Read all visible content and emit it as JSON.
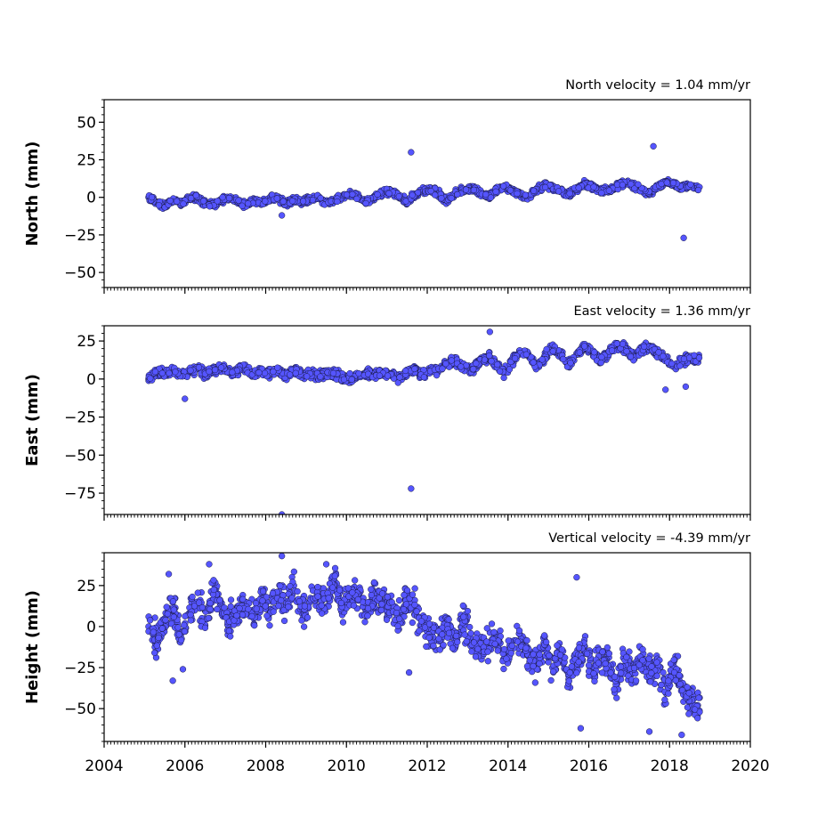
{
  "chart_data": [
    {
      "type": "scatter",
      "title": "North velocity = 1.04 mm/yr",
      "ylabel": "North (mm)",
      "ylim": [
        -60,
        65
      ],
      "yticks": [
        -50,
        -25,
        0,
        25,
        50
      ],
      "ytick_labels": [
        "−50",
        "−25",
        "0",
        "25",
        "50"
      ],
      "xlim": [
        2004,
        2020
      ],
      "xtick_labels_shown": false,
      "color": "#5555ff",
      "series": [
        {
          "x": [
            2005.1,
            2005.3,
            2005.5,
            2005.7,
            2005.9,
            2006.1,
            2006.3,
            2006.5,
            2006.7,
            2006.9,
            2007.1,
            2007.3,
            2007.5,
            2007.7,
            2007.9,
            2008.1,
            2008.3,
            2008.5,
            2008.7,
            2008.9,
            2009.1,
            2009.3,
            2009.5,
            2009.7,
            2009.9,
            2010.1,
            2010.3,
            2010.5,
            2010.7,
            2010.9,
            2011.1,
            2011.3,
            2011.5,
            2011.7,
            2011.9,
            2012.1,
            2012.3,
            2012.5,
            2012.7,
            2012.9,
            2013.1,
            2013.3,
            2013.5,
            2013.7,
            2013.9,
            2014.1,
            2014.3,
            2014.5,
            2014.7,
            2014.9,
            2015.1,
            2015.3,
            2015.5,
            2015.7,
            2015.9,
            2016.1,
            2016.3,
            2016.5,
            2016.7,
            2016.9,
            2017.1,
            2017.3,
            2017.5,
            2017.7,
            2017.9,
            2018.1,
            2018.3,
            2018.5,
            2018.7,
            2011.6,
            2017.6,
            2018.35,
            2008.4
          ],
          "y": [
            0,
            -3,
            -6,
            -2,
            -4,
            -1,
            0,
            -4,
            -5,
            -2,
            0,
            -3,
            -5,
            -2,
            -4,
            -1,
            0,
            -5,
            -2,
            -3,
            -1,
            0,
            -4,
            -2,
            0,
            2,
            0,
            -3,
            0,
            3,
            4,
            0,
            -3,
            2,
            4,
            5,
            2,
            -2,
            3,
            5,
            6,
            3,
            0,
            4,
            7,
            5,
            2,
            0,
            5,
            8,
            7,
            4,
            2,
            6,
            9,
            7,
            4,
            5,
            8,
            10,
            8,
            5,
            3,
            7,
            10,
            9,
            6,
            8,
            6,
            30,
            34,
            -27,
            -12
          ]
        }
      ]
    },
    {
      "type": "scatter",
      "title": "East velocity = 1.36 mm/yr",
      "ylabel": "East (mm)",
      "ylim": [
        -89,
        35
      ],
      "yticks": [
        -75,
        -50,
        -25,
        0,
        25
      ],
      "ytick_labels": [
        "−75",
        "−50",
        "−25",
        "0",
        "25"
      ],
      "xlim": [
        2004,
        2020
      ],
      "xtick_labels_shown": false,
      "color": "#5555ff",
      "series": [
        {
          "x": [
            2005.1,
            2005.3,
            2005.5,
            2005.7,
            2005.9,
            2006.1,
            2006.3,
            2006.5,
            2006.7,
            2006.9,
            2007.1,
            2007.3,
            2007.5,
            2007.7,
            2007.9,
            2008.1,
            2008.3,
            2008.5,
            2008.7,
            2008.9,
            2009.1,
            2009.3,
            2009.5,
            2009.7,
            2009.9,
            2010.1,
            2010.3,
            2010.5,
            2010.7,
            2010.9,
            2011.1,
            2011.3,
            2011.5,
            2011.7,
            2011.9,
            2012.1,
            2012.3,
            2012.5,
            2012.7,
            2012.9,
            2013.1,
            2013.3,
            2013.5,
            2013.7,
            2013.9,
            2014.1,
            2014.3,
            2014.5,
            2014.7,
            2014.9,
            2015.1,
            2015.3,
            2015.5,
            2015.7,
            2015.9,
            2016.1,
            2016.3,
            2016.5,
            2016.7,
            2016.9,
            2017.1,
            2017.3,
            2017.5,
            2017.7,
            2017.9,
            2018.1,
            2018.3,
            2018.5,
            2018.7,
            2011.6,
            2013.55,
            2008.4,
            2006.0,
            2017.9,
            2018.4
          ],
          "y": [
            0,
            5,
            3,
            6,
            2,
            4,
            7,
            3,
            6,
            8,
            4,
            5,
            7,
            3,
            5,
            4,
            6,
            2,
            5,
            3,
            4,
            2,
            4,
            3,
            1,
            0,
            3,
            4,
            2,
            5,
            3,
            1,
            4,
            6,
            2,
            5,
            7,
            10,
            12,
            8,
            6,
            11,
            15,
            10,
            4,
            12,
            18,
            16,
            8,
            14,
            20,
            17,
            10,
            16,
            22,
            18,
            12,
            18,
            22,
            20,
            15,
            19,
            21,
            17,
            14,
            8,
            11,
            14,
            13,
            -72,
            31,
            -89,
            -13,
            -7,
            -5
          ]
        }
      ]
    },
    {
      "type": "scatter",
      "title": "Vertical velocity = -4.39 mm/yr",
      "ylabel": "Height (mm)",
      "ylim": [
        -70,
        45
      ],
      "yticks": [
        -50,
        -25,
        0,
        25
      ],
      "ytick_labels": [
        "−50",
        "−25",
        "0",
        "25"
      ],
      "xlim": [
        2004,
        2020
      ],
      "xticks": [
        2004,
        2006,
        2008,
        2010,
        2012,
        2014,
        2016,
        2018,
        2020
      ],
      "xtick_labels": [
        "2004",
        "2006",
        "2008",
        "2010",
        "2012",
        "2014",
        "2016",
        "2018",
        "2020"
      ],
      "color": "#5555ff",
      "series": [
        {
          "x": [
            2005.1,
            2005.3,
            2005.5,
            2005.7,
            2005.9,
            2006.1,
            2006.3,
            2006.5,
            2006.7,
            2006.9,
            2007.1,
            2007.3,
            2007.5,
            2007.7,
            2007.9,
            2008.1,
            2008.3,
            2008.5,
            2008.7,
            2008.9,
            2009.1,
            2009.3,
            2009.5,
            2009.7,
            2009.9,
            2010.1,
            2010.3,
            2010.5,
            2010.7,
            2010.9,
            2011.1,
            2011.3,
            2011.5,
            2011.7,
            2011.9,
            2012.1,
            2012.3,
            2012.5,
            2012.7,
            2012.9,
            2013.1,
            2013.3,
            2013.5,
            2013.7,
            2013.9,
            2014.1,
            2014.3,
            2014.5,
            2014.7,
            2014.9,
            2015.1,
            2015.3,
            2015.5,
            2015.7,
            2015.9,
            2016.1,
            2016.3,
            2016.5,
            2016.7,
            2016.9,
            2017.1,
            2017.3,
            2017.5,
            2017.7,
            2017.9,
            2018.1,
            2018.3,
            2018.5,
            2018.7,
            2005.6,
            2005.7,
            2006.6,
            2008.4,
            2009.5,
            2011.55,
            2015.7,
            2015.8,
            2017.5,
            2018.3,
            2005.95
          ],
          "y": [
            0,
            -8,
            5,
            10,
            -5,
            8,
            15,
            5,
            20,
            12,
            2,
            8,
            15,
            5,
            18,
            10,
            20,
            12,
            25,
            8,
            15,
            20,
            12,
            28,
            10,
            18,
            22,
            8,
            20,
            15,
            12,
            5,
            18,
            10,
            0,
            -3,
            -8,
            2,
            -12,
            5,
            -8,
            -15,
            -10,
            -5,
            -20,
            -12,
            -5,
            -18,
            -22,
            -10,
            -25,
            -15,
            -30,
            -20,
            -12,
            -28,
            -18,
            -25,
            -35,
            -20,
            -28,
            -18,
            -30,
            -25,
            -40,
            -22,
            -35,
            -45,
            -48,
            32,
            -33,
            38,
            43,
            38,
            -28,
            30,
            -62,
            -64,
            -66,
            -26
          ]
        }
      ]
    }
  ]
}
